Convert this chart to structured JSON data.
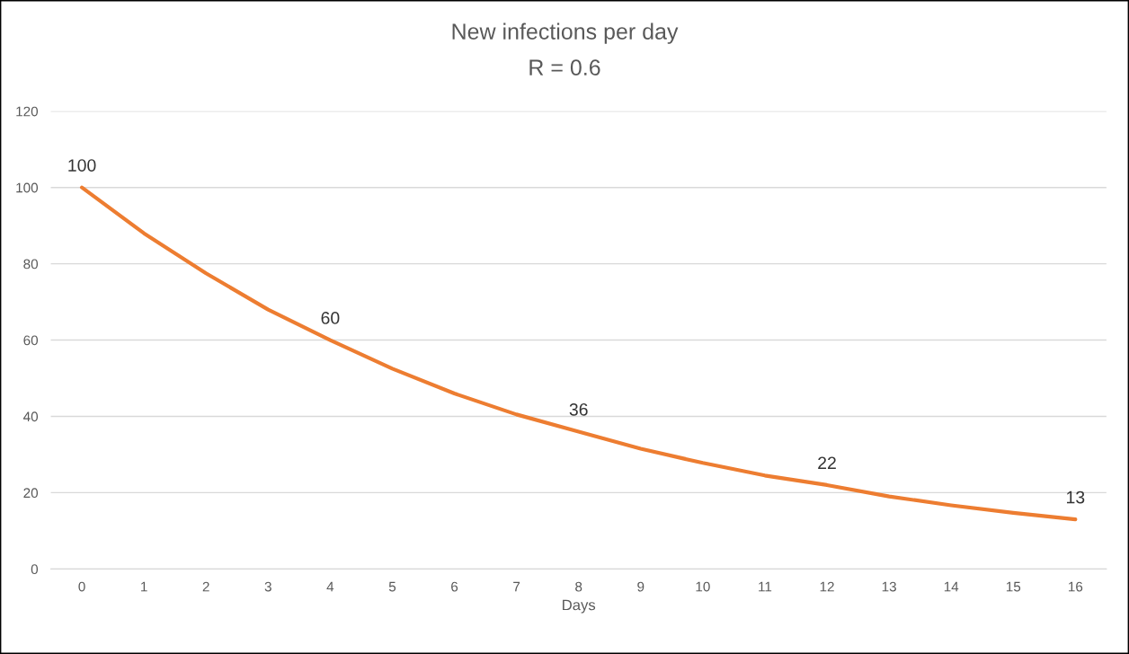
{
  "chart_data": {
    "type": "line",
    "title": "New infections per day",
    "subtitle": "R = 0.6",
    "xlabel": "Days",
    "categories": [
      "0",
      "1",
      "2",
      "3",
      "4",
      "5",
      "6",
      "7",
      "8",
      "9",
      "10",
      "11",
      "12",
      "13",
      "14",
      "15",
      "16"
    ],
    "series": [
      {
        "color": "#ed7d31",
        "values": [
          100,
          88,
          77.5,
          68,
          60,
          52.5,
          46,
          40.5,
          36,
          31.5,
          27.8,
          24.5,
          22,
          19,
          16.7,
          14.7,
          13
        ],
        "value_labels": [
          "100",
          null,
          null,
          null,
          "60",
          null,
          null,
          null,
          "36",
          null,
          null,
          null,
          "22",
          null,
          null,
          null,
          "13"
        ]
      }
    ],
    "ylim": [
      0,
      120
    ],
    "yticks": [
      0,
      20,
      40,
      60,
      80,
      100,
      120
    ],
    "grid": "y",
    "marker": "none",
    "line_style": "solid"
  }
}
